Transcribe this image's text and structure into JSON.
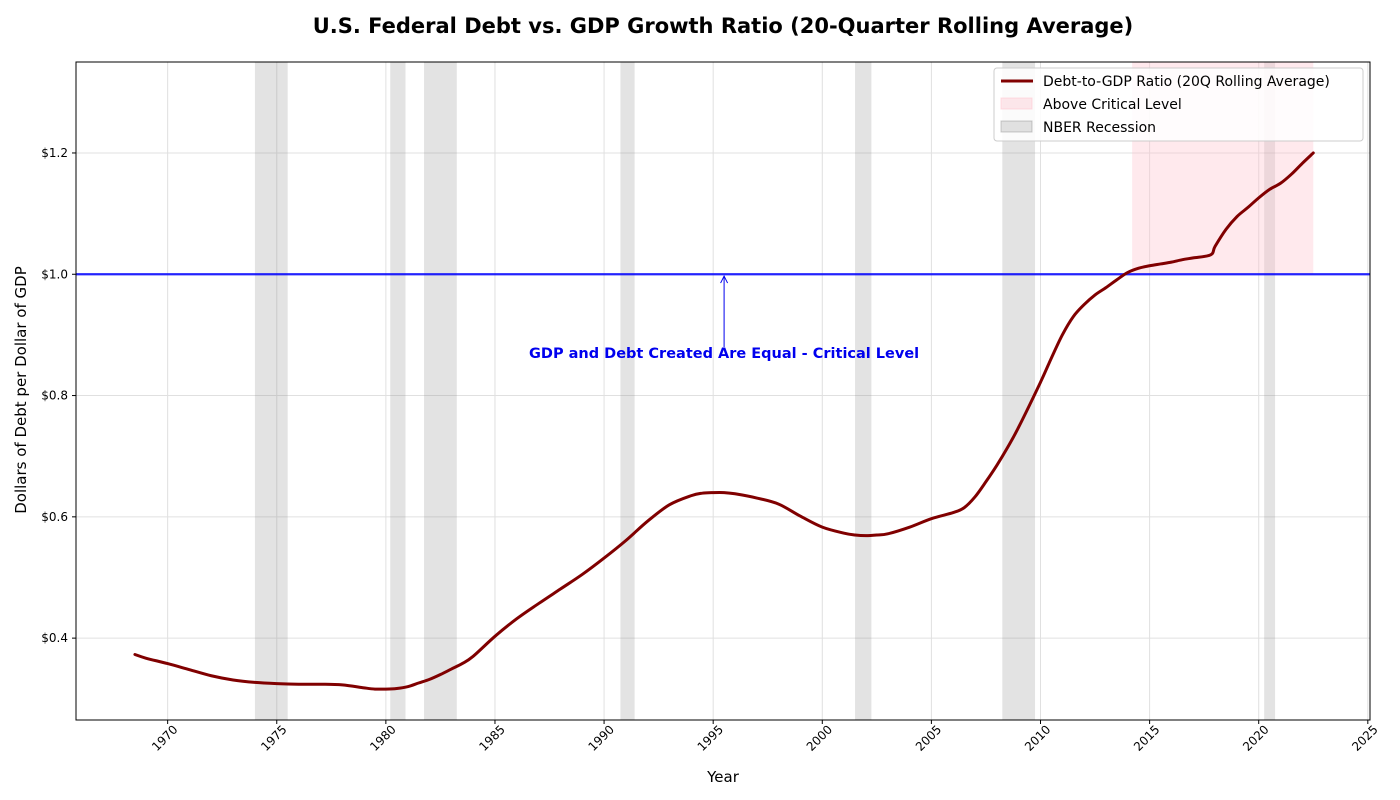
{
  "colors": {
    "series": "#800000",
    "reference_line": "#0000ff",
    "critical_fill": "#ffc0cb",
    "recession_fill": "#808080",
    "annotation": "#0000ee",
    "grid": "#e0e0e0"
  },
  "chart_data": {
    "type": "line",
    "title": "U.S. Federal Debt vs. GDP Growth Ratio (20-Quarter Rolling Average)",
    "xlabel": "Year",
    "ylabel": "Dollars of Debt per Dollar of GDP",
    "xlim": [
      1965.8,
      2025.1
    ],
    "ylim": [
      0.265,
      1.35
    ],
    "grid": true,
    "legend_position": "top-right",
    "x_ticks": [
      1970,
      1975,
      1980,
      1985,
      1990,
      1995,
      2000,
      2005,
      2010,
      2015,
      2020,
      2025
    ],
    "x_tick_labels": [
      "1970",
      "1975",
      "1980",
      "1985",
      "1990",
      "1995",
      "2000",
      "2005",
      "2010",
      "2015",
      "2020",
      "2025"
    ],
    "y_ticks": [
      0.4,
      0.6,
      0.8,
      1.0,
      1.2
    ],
    "y_tick_labels": [
      "$0.4",
      "$0.6",
      "$0.8",
      "$1.0",
      "$1.2"
    ],
    "series": [
      {
        "name": "Debt-to-GDP Ratio (20Q Rolling Average)",
        "x": [
          1968.5,
          1969.0,
          1970.0,
          1971.0,
          1972.0,
          1973.0,
          1974.0,
          1975.0,
          1976.0,
          1977.0,
          1978.0,
          1979.0,
          1979.5,
          1980.0,
          1980.5,
          1981.0,
          1981.5,
          1982.0,
          1982.5,
          1983.0,
          1983.5,
          1984.0,
          1985.0,
          1986.0,
          1987.0,
          1988.0,
          1989.0,
          1990.0,
          1991.0,
          1992.0,
          1993.0,
          1994.0,
          1994.5,
          1995.0,
          1995.5,
          1996.0,
          1997.0,
          1998.0,
          1999.0,
          2000.0,
          2001.0,
          2001.5,
          2002.0,
          2002.5,
          2003.0,
          2004.0,
          2005.0,
          2006.0,
          2006.5,
          2007.0,
          2007.5,
          2008.0,
          2008.5,
          2009.0,
          2010.0,
          2010.5,
          2011.0,
          2011.5,
          2012.0,
          2012.5,
          2013.0,
          2013.5,
          2014.0,
          2014.5,
          2015.0,
          2015.5,
          2016.0,
          2016.5,
          2017.0,
          2017.8,
          2018.0,
          2018.5,
          2019.0,
          2019.5,
          2020.0,
          2020.5,
          2021.0,
          2021.5,
          2022.0,
          2022.5
        ],
        "y": [
          0.373,
          0.367,
          0.358,
          0.348,
          0.338,
          0.331,
          0.327,
          0.325,
          0.324,
          0.324,
          0.323,
          0.318,
          0.316,
          0.316,
          0.317,
          0.32,
          0.326,
          0.332,
          0.34,
          0.349,
          0.358,
          0.37,
          0.403,
          0.432,
          0.457,
          0.481,
          0.505,
          0.532,
          0.561,
          0.593,
          0.62,
          0.635,
          0.639,
          0.64,
          0.64,
          0.638,
          0.631,
          0.621,
          0.601,
          0.583,
          0.573,
          0.57,
          0.569,
          0.57,
          0.572,
          0.583,
          0.597,
          0.607,
          0.615,
          0.633,
          0.658,
          0.685,
          0.715,
          0.748,
          0.822,
          0.862,
          0.9,
          0.93,
          0.95,
          0.966,
          0.978,
          0.991,
          1.003,
          1.01,
          1.014,
          1.017,
          1.02,
          1.024,
          1.027,
          1.032,
          1.046,
          1.074,
          1.095,
          1.11,
          1.126,
          1.14,
          1.15,
          1.165,
          1.183,
          1.2
        ]
      }
    ],
    "reference_line": {
      "y": 1.0
    },
    "critical_region": {
      "x_start": 2014.2,
      "x_end": 2022.5,
      "y_from": 1.0
    },
    "recessions": [
      [
        1974.0,
        1975.5
      ],
      [
        1980.2,
        1980.9
      ],
      [
        1981.75,
        1983.25
      ],
      [
        1990.75,
        1991.4
      ],
      [
        2001.5,
        2002.25
      ],
      [
        2008.25,
        2009.75
      ],
      [
        2020.25,
        2020.75
      ]
    ],
    "legend": {
      "series_label": "Debt-to-GDP Ratio (20Q Rolling Average)",
      "critical_label": "Above Critical Level",
      "recession_label": "NBER Recession"
    },
    "annotation": {
      "text": "GDP and Debt Created Are Equal - Critical Level",
      "arrow_x": 1995.5,
      "arrow_from_y": 0.88,
      "arrow_to_y": 0.997,
      "text_x": 1995.5,
      "text_y": 0.862
    }
  }
}
